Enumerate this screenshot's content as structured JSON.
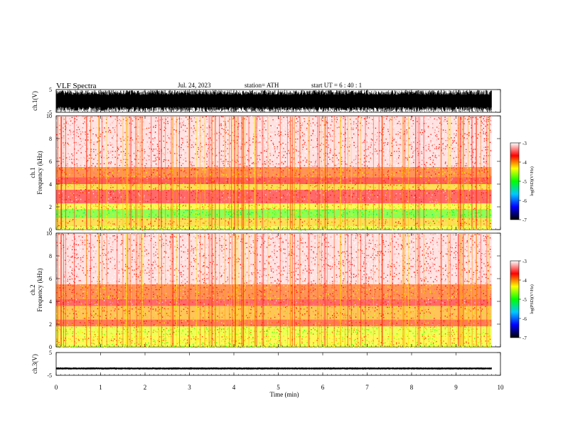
{
  "header": {
    "title": "VLF  Spectra",
    "date": "Jul.  24,  2023",
    "station": "station= ATH",
    "start": "start  UT  =    6   : 40 : 1"
  },
  "chart_data": [
    {
      "type": "line",
      "panel": "ch1-waveform",
      "ylabel": "ch.1(V)",
      "ylim": [
        -5,
        5
      ],
      "yticks": [
        "5",
        "-5"
      ],
      "x_range_min": [
        0,
        9.8
      ],
      "amplitude_range_V": [
        -4.8,
        4.8
      ],
      "color": "#000000"
    },
    {
      "type": "heatmap",
      "panel": "ch1-spectrogram",
      "ylabel_channel": "ch.1",
      "ylabel": "Frequency  (kHz)",
      "ylim": [
        0,
        10
      ],
      "yticks": [
        "0",
        "2",
        "4",
        "6",
        "8",
        "10"
      ],
      "x_range_min": [
        0,
        9.8
      ],
      "bands": [
        {
          "from_kHz": 0.0,
          "to_kHz": 0.3,
          "log_psd": -4.4
        },
        {
          "from_kHz": 0.3,
          "to_kHz": 1.0,
          "log_psd": -4.2
        },
        {
          "from_kHz": 1.0,
          "to_kHz": 1.8,
          "log_psd": -4.8
        },
        {
          "from_kHz": 1.8,
          "to_kHz": 2.3,
          "log_psd": -4.3
        },
        {
          "from_kHz": 2.3,
          "to_kHz": 3.5,
          "log_psd": -3.6
        },
        {
          "from_kHz": 3.5,
          "to_kHz": 4.0,
          "log_psd": -4.2
        },
        {
          "from_kHz": 4.0,
          "to_kHz": 4.6,
          "log_psd": -3.7
        },
        {
          "from_kHz": 4.6,
          "to_kHz": 5.5,
          "log_psd": -3.9
        },
        {
          "from_kHz": 5.5,
          "to_kHz": 10.0,
          "log_psd": -3.3
        }
      ]
    },
    {
      "type": "heatmap",
      "panel": "ch2-spectrogram",
      "ylabel_channel": "ch.2",
      "ylabel": "Frequency  (kHz)",
      "ylim": [
        0,
        10
      ],
      "yticks": [
        "0",
        "2",
        "4",
        "6",
        "8",
        "10"
      ],
      "x_range_min": [
        0,
        9.8
      ],
      "bands": [
        {
          "from_kHz": 0.0,
          "to_kHz": 0.3,
          "log_psd": -4.4
        },
        {
          "from_kHz": 0.3,
          "to_kHz": 1.0,
          "log_psd": -4.3
        },
        {
          "from_kHz": 1.0,
          "to_kHz": 1.8,
          "log_psd": -4.4
        },
        {
          "from_kHz": 1.8,
          "to_kHz": 2.4,
          "log_psd": -3.8
        },
        {
          "from_kHz": 2.4,
          "to_kHz": 3.6,
          "log_psd": -4.1
        },
        {
          "from_kHz": 3.6,
          "to_kHz": 4.2,
          "log_psd": -3.6
        },
        {
          "from_kHz": 4.2,
          "to_kHz": 5.5,
          "log_psd": -3.9
        },
        {
          "from_kHz": 5.5,
          "to_kHz": 10.0,
          "log_psd": -3.3
        }
      ]
    },
    {
      "type": "line",
      "panel": "ch3-waveform",
      "ylabel": "ch.3(V)",
      "ylim": [
        -5,
        5
      ],
      "yticks": [
        "5",
        "-5"
      ],
      "x_range_min": [
        0,
        9.8
      ],
      "amplitude_range_V": [
        -0.5,
        0.5
      ],
      "offset_V": -2.0,
      "color": "#000000"
    }
  ],
  "xaxis": {
    "label": "Time  (min)",
    "ticks": [
      "0",
      "1",
      "2",
      "3",
      "4",
      "5",
      "6",
      "7",
      "8",
      "9",
      "10"
    ],
    "xlim": [
      0,
      10
    ]
  },
  "colorbar": {
    "label": "log(PSD)(V²/Hz)",
    "ticks": [
      "-3",
      "-4",
      "-5",
      "-6",
      "-7"
    ],
    "range": [
      -7,
      -3
    ],
    "stops": [
      "#000000",
      "#0000ff",
      "#00c8ff",
      "#00ff00",
      "#ffff00",
      "#ff0000",
      "#ffffff"
    ]
  }
}
